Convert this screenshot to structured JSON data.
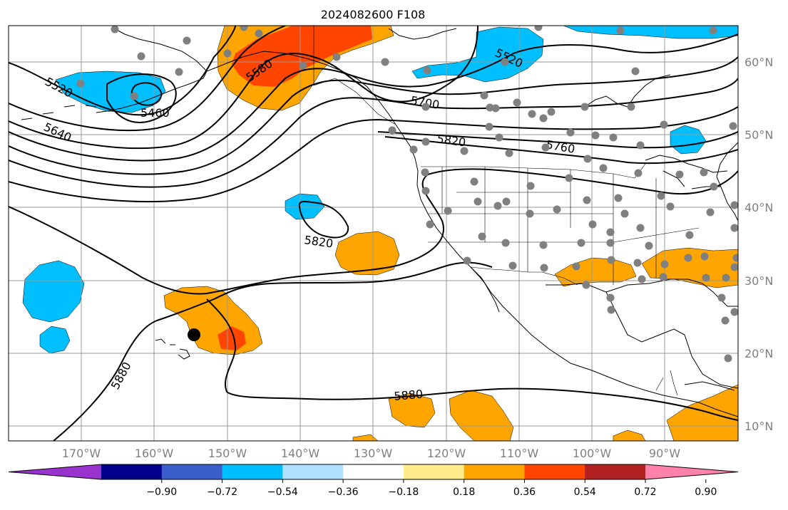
{
  "title": "2024082600 F108",
  "lon_labels": [
    "170°W",
    "160°W",
    "150°W",
    "140°W",
    "130°W",
    "120°W",
    "110°W",
    "100°W",
    "90°W"
  ],
  "lat_labels": [
    "60°N",
    "50°N",
    "40°N",
    "30°N",
    "20°N",
    "10°N"
  ],
  "contour_labels": [
    "5520",
    "5460",
    "5640",
    "5580",
    "5520",
    "5700",
    "5820",
    "5760",
    "5820",
    "5880",
    "5880"
  ],
  "colorbar": {
    "colors": [
      "#9a32cd",
      "#00008b",
      "#3a5fcd",
      "#00bfff",
      "#b0e2ff",
      "#ffffff",
      "#ffec8b",
      "#ffa500",
      "#ff4500",
      "#b22222",
      "#ff82ab"
    ],
    "tick_labels": [
      "−0.90",
      "−0.72",
      "−0.54",
      "−0.36",
      "−0.18",
      "0.18",
      "0.36",
      "0.54",
      "0.72",
      "0.90"
    ]
  },
  "colors": {
    "gridline": "#999999",
    "axis_label": "#808080",
    "station_dot": "#808080",
    "contour": "#000000"
  }
}
